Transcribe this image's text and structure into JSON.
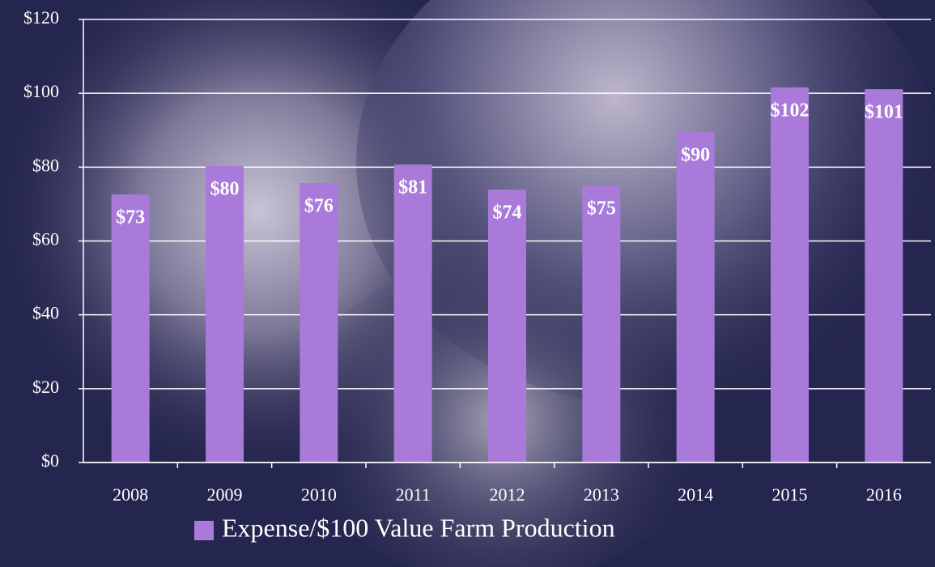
{
  "chart_data": {
    "type": "bar",
    "categories": [
      "2008",
      "2009",
      "2010",
      "2011",
      "2012",
      "2013",
      "2014",
      "2015",
      "2016"
    ],
    "series": [
      {
        "name": "Expense/$100 Value Farm Production",
        "color": "#a97ad9",
        "values": [
          72.6,
          80.3,
          75.7,
          80.7,
          73.9,
          75.0,
          89.5,
          101.6,
          101.1
        ],
        "value_labels": [
          "$73",
          "$80",
          "$76",
          "$81",
          "$74",
          "$75",
          "$90",
          "$102",
          "$101"
        ]
      }
    ],
    "ylim": [
      0,
      120
    ],
    "yticks": [
      {
        "value": 0,
        "label": "$0"
      },
      {
        "value": 20,
        "label": "$20"
      },
      {
        "value": 40,
        "label": "$40"
      },
      {
        "value": 60,
        "label": "$60"
      },
      {
        "value": 80,
        "label": "$80"
      },
      {
        "value": 100,
        "label": "$100"
      },
      {
        "value": 120,
        "label": "$120"
      }
    ],
    "grid": true,
    "legend": "bottom"
  }
}
